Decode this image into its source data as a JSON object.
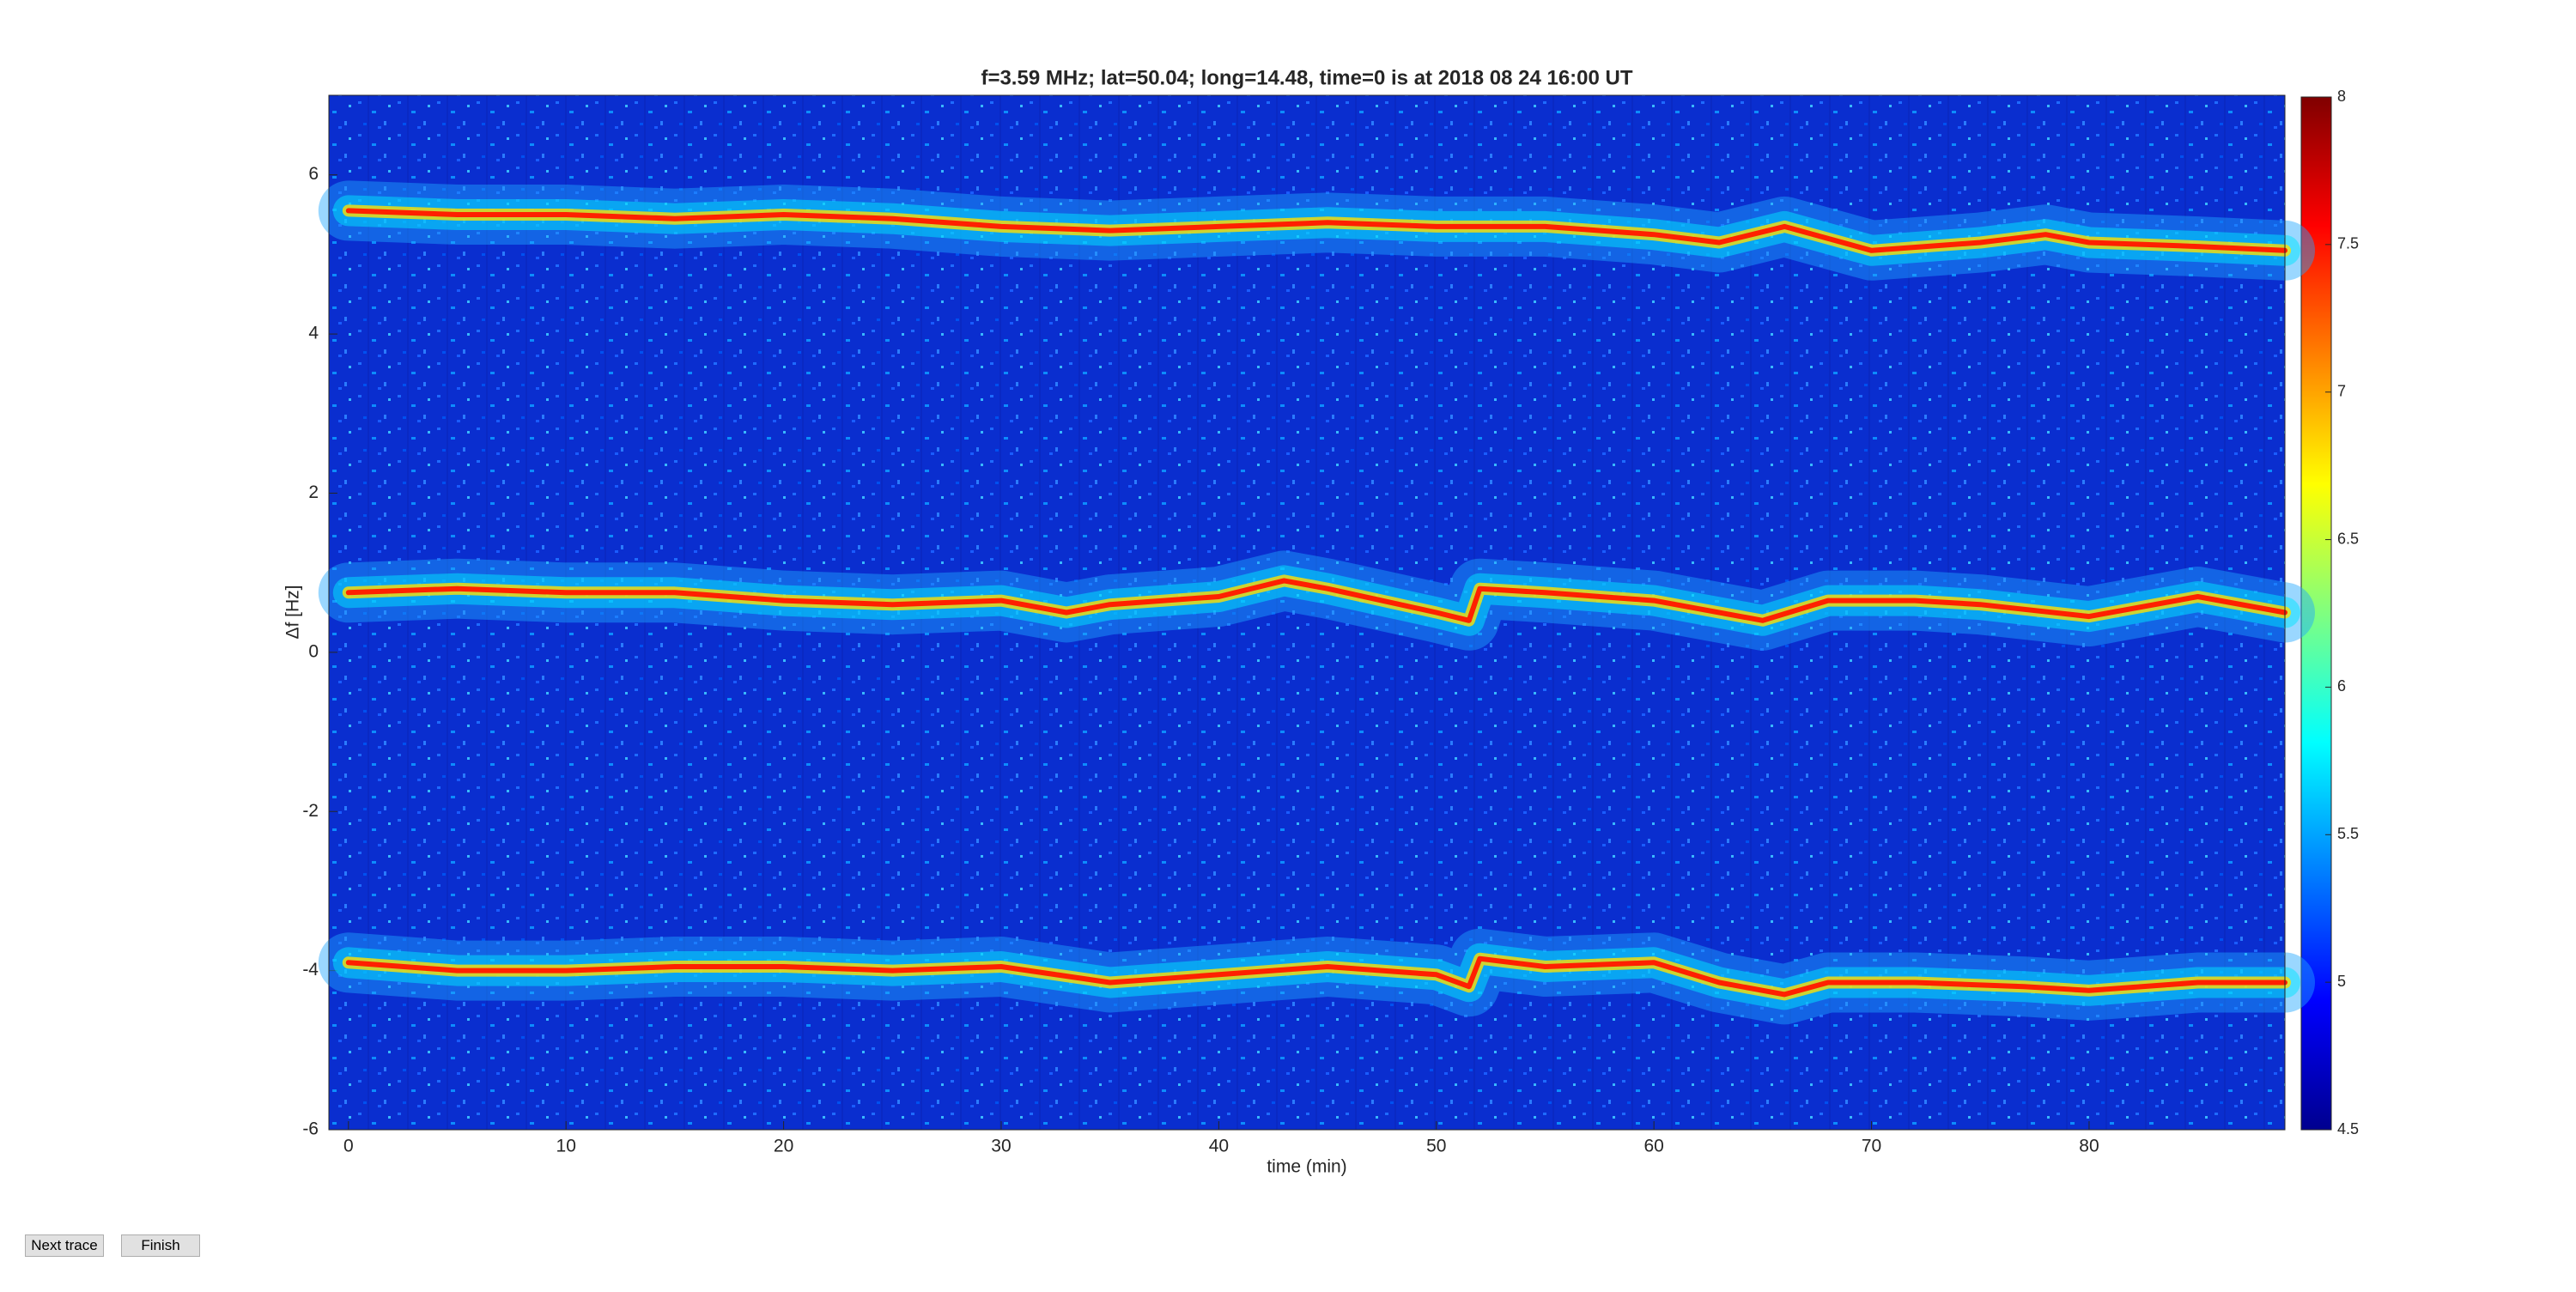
{
  "chart_data": {
    "type": "spectrogram",
    "title": "f=3.59 MHz;  lat=50.04; long=14.48, time=0 is at 2018 08 24 16:00 UT",
    "xlabel": "time (min)",
    "ylabel": "Δf [Hz]",
    "xlim": [
      -0.9,
      89
    ],
    "xticks": [
      0,
      10,
      20,
      30,
      40,
      50,
      60,
      70,
      80
    ],
    "ylim": [
      -6,
      7
    ],
    "yticks": [
      -6,
      -4,
      -2,
      0,
      2,
      4,
      6
    ],
    "clim": [
      4.5,
      8
    ],
    "cticks": [
      4.5,
      5,
      5.5,
      6,
      6.5,
      7,
      7.5,
      8
    ],
    "colormap": "jet",
    "series": [
      {
        "color": "#ff2000",
        "x": [
          0,
          5,
          10,
          15,
          20,
          25,
          30,
          35,
          40,
          45,
          50,
          55,
          60,
          63,
          66,
          70,
          75,
          78,
          80,
          85,
          89
        ],
        "values": [
          5.55,
          5.5,
          5.5,
          5.45,
          5.5,
          5.45,
          5.35,
          5.3,
          5.35,
          5.4,
          5.35,
          5.35,
          5.25,
          5.15,
          5.35,
          5.05,
          5.15,
          5.25,
          5.15,
          5.1,
          5.05
        ]
      },
      {
        "color": "#ff2000",
        "x": [
          0,
          5,
          10,
          15,
          20,
          25,
          30,
          33,
          35,
          40,
          43,
          45,
          50,
          51.5,
          52,
          55,
          60,
          65,
          68,
          72,
          75,
          80,
          85,
          89
        ],
        "values": [
          0.75,
          0.8,
          0.75,
          0.75,
          0.65,
          0.6,
          0.65,
          0.5,
          0.6,
          0.7,
          0.9,
          0.8,
          0.5,
          0.4,
          0.8,
          0.75,
          0.65,
          0.4,
          0.65,
          0.65,
          0.6,
          0.45,
          0.7,
          0.5
        ]
      },
      {
        "color": "#ff2000",
        "x": [
          0,
          5,
          10,
          15,
          20,
          25,
          30,
          35,
          40,
          45,
          50,
          51.5,
          52,
          55,
          60,
          63,
          66,
          68,
          72,
          77,
          80,
          85,
          89
        ],
        "values": [
          -3.9,
          -4.0,
          -4.0,
          -3.95,
          -3.95,
          -4.0,
          -3.95,
          -4.15,
          -4.05,
          -3.95,
          -4.05,
          -4.2,
          -3.85,
          -3.95,
          -3.9,
          -4.15,
          -4.3,
          -4.15,
          -4.15,
          -4.2,
          -4.25,
          -4.15,
          -4.15
        ]
      }
    ]
  },
  "controls": {
    "next": "Next trace",
    "finish": "Finish"
  }
}
